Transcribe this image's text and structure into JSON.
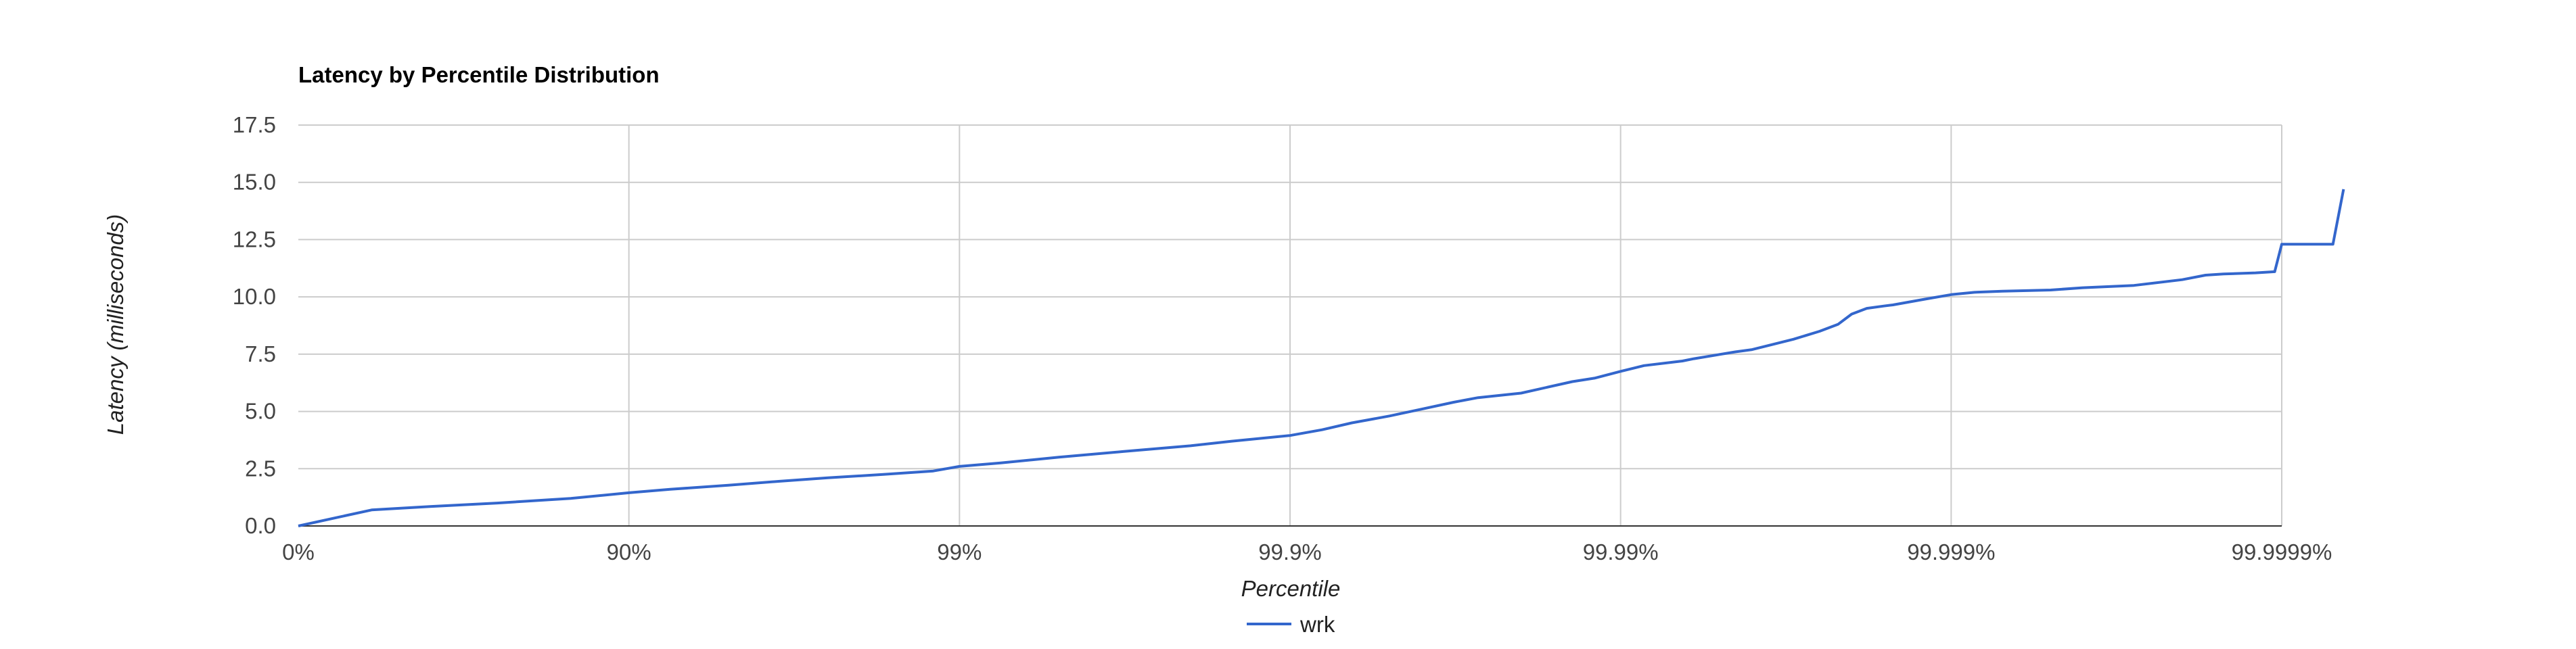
{
  "chart_data": {
    "type": "line",
    "title": "Latency by Percentile Distribution",
    "xlabel": "Percentile",
    "ylabel": "Latency (milliseconds)",
    "x_scale": "log-percentile",
    "x_ticks": [
      "0%",
      "90%",
      "99%",
      "99.9%",
      "99.99%",
      "99.999%",
      "99.9999%"
    ],
    "y_ticks": [
      "0.0",
      "2.5",
      "5.0",
      "7.5",
      "10.0",
      "12.5",
      "15.0",
      "17.5"
    ],
    "ylim": [
      0,
      17.5
    ],
    "grid": true,
    "legend_position": "bottom",
    "colors": {
      "series": "#3366cc"
    },
    "series": [
      {
        "name": "wrk",
        "points": [
          [
            0,
            0.0
          ],
          [
            40,
            0.7
          ],
          [
            60,
            0.85
          ],
          [
            75,
            1.0
          ],
          [
            85,
            1.2
          ],
          [
            90,
            1.45
          ],
          [
            92.5,
            1.6
          ],
          [
            95,
            1.78
          ],
          [
            96.5,
            1.95
          ],
          [
            97.5,
            2.1
          ],
          [
            98.3,
            2.25
          ],
          [
            98.8,
            2.4
          ],
          [
            99,
            2.6
          ],
          [
            99.25,
            2.75
          ],
          [
            99.5,
            3.0
          ],
          [
            99.68,
            3.25
          ],
          [
            99.8,
            3.5
          ],
          [
            99.85,
            3.7
          ],
          [
            99.9,
            3.95
          ],
          [
            99.92,
            4.2
          ],
          [
            99.935,
            4.5
          ],
          [
            99.95,
            4.8
          ],
          [
            99.96,
            5.1
          ],
          [
            99.968,
            5.4
          ],
          [
            99.973,
            5.6
          ],
          [
            99.98,
            5.8
          ],
          [
            99.986,
            6.3
          ],
          [
            99.988,
            6.45
          ],
          [
            99.99,
            6.75
          ],
          [
            99.9915,
            7.0
          ],
          [
            99.9935,
            7.2
          ],
          [
            99.994,
            7.3
          ],
          [
            99.9955,
            7.6
          ],
          [
            99.996,
            7.7
          ],
          [
            99.997,
            8.15
          ],
          [
            99.9975,
            8.5
          ],
          [
            99.9978,
            8.8
          ],
          [
            99.998,
            9.25
          ],
          [
            99.9982,
            9.5
          ],
          [
            99.9984,
            9.6
          ],
          [
            99.9985,
            9.65
          ],
          [
            99.9988,
            9.9
          ],
          [
            99.999,
            10.1
          ],
          [
            99.99915,
            10.2
          ],
          [
            99.9993,
            10.25
          ],
          [
            99.9995,
            10.3
          ],
          [
            99.9996,
            10.4
          ],
          [
            99.99972,
            10.5
          ],
          [
            99.9998,
            10.75
          ],
          [
            99.99983,
            10.95
          ],
          [
            99.99985,
            11.0
          ],
          [
            99.99988,
            11.05
          ],
          [
            99.999895,
            11.1
          ],
          [
            99.9999,
            12.3
          ],
          [
            99.999915,
            12.3
          ],
          [
            99.99993,
            12.3
          ],
          [
            99.999935,
            14.7
          ]
        ]
      }
    ]
  }
}
